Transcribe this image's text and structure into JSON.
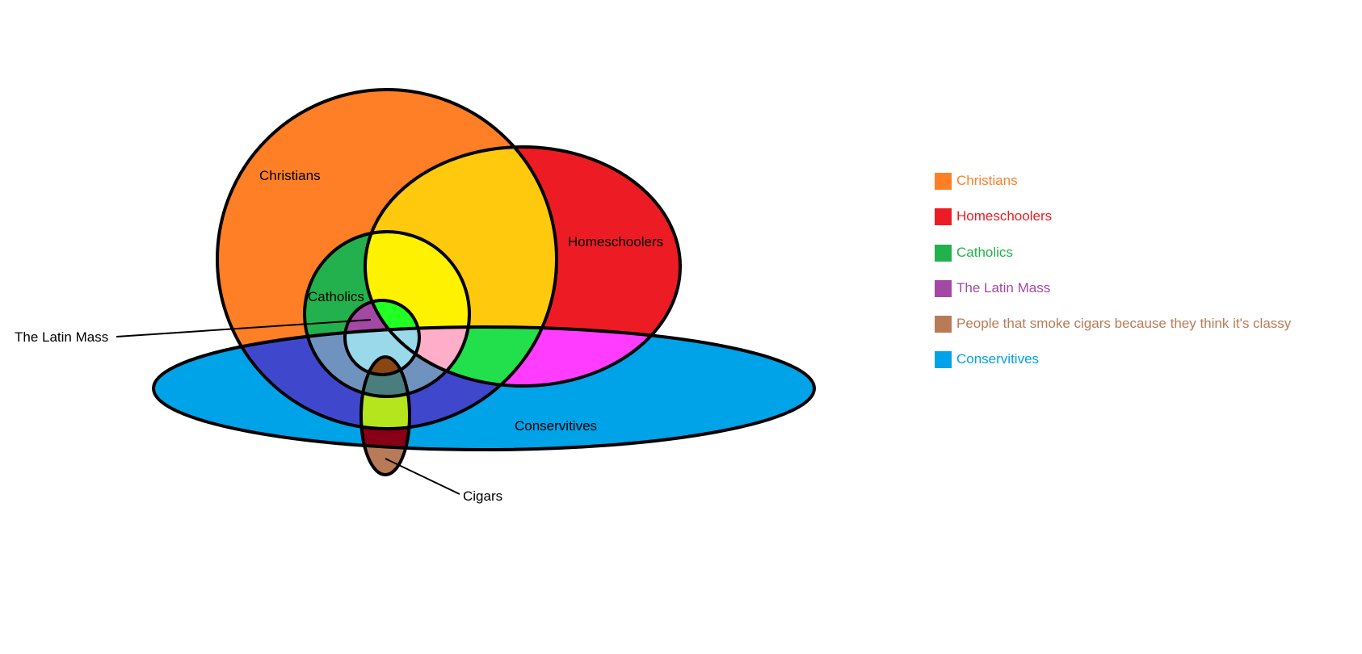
{
  "diagram": {
    "labels": {
      "christians": "Christians",
      "homeschoolers": "Homeschoolers",
      "catholics": "Catholics",
      "latin_mass": "The Latin Mass",
      "conservatives": "Conservitives",
      "cigars": "Cigars"
    }
  },
  "legend": [
    {
      "label": "Christians",
      "color": "#FF7F27"
    },
    {
      "label": "Homeschoolers",
      "color": "#ED1C24"
    },
    {
      "label": "Catholics",
      "color": "#22B14C"
    },
    {
      "label": "The Latin Mass",
      "color": "#A349A4"
    },
    {
      "label": "People that smoke cigars because they think it's classy",
      "color": "#B97A57"
    },
    {
      "label": "Conservitives",
      "color": "#00A2E8"
    }
  ],
  "colors": {
    "christians": "#FF7F27",
    "homeschoolers": "#ED1C24",
    "catholics": "#22B14C",
    "latin_mass": "#A349A4",
    "cigars": "#B97A57",
    "conservatives": "#00A2E8",
    "christian_homeschoolers": "#FFC90E",
    "catholic_homeschoolers": "#FFF200",
    "latin_mass_homeschoolers": "#22FF22",
    "christian_conservatives": "#3F48CC",
    "homeschool_conservatives": "#FF3CFF",
    "christian_homeschool_conservatives": "#22E04C",
    "catholic_conservatives": "#7092BE",
    "catholic_homeschool_conservatives": "#FFAEC9",
    "latin_mass_conservatives": "#99D9EA",
    "latin_mass_cigars": "#8B4513",
    "catholic_cigar_conservatives": "#4A7D7D",
    "christian_cigar_conservatives": "#B5E61D",
    "cigar_conservatives": "#880015"
  }
}
